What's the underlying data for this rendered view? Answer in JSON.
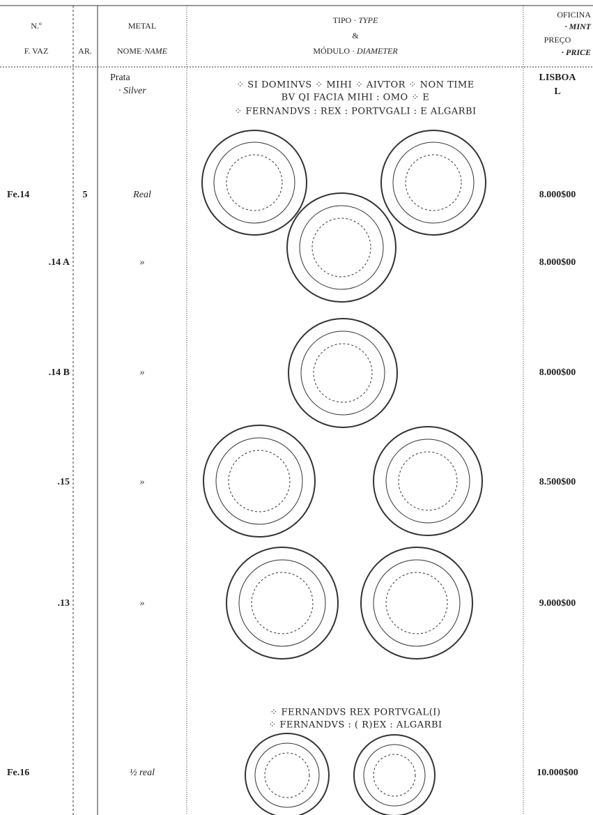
{
  "header": {
    "number": "N.º",
    "f_vaz": "F. VAZ",
    "ar": "AR.",
    "metal": "METAL",
    "nome": "NOME·",
    "name": "NAME",
    "tipo": "TIPO · ",
    "type": "TYPE",
    "and": "&",
    "modulo": "MÓDULO · ",
    "diameter": "DIAMETER",
    "oficina": "OFICINA",
    "mint": "· MINT",
    "preco": "PREÇO",
    "price": "· PRICE"
  },
  "group": {
    "metal": "Prata",
    "metal_en": "· Silver",
    "mint": "LISBOA",
    "mint_mark": "L",
    "legends": [
      "⁘ SI DOMINVS ⁘ MIHI ⁘ AIVTOR ⁘ NON TIME",
      "BV QI FACIA MIHI : OMO ⁘ E",
      "⁘ FERNANDVS : REX : PORTVGALI : E ALGARBI"
    ]
  },
  "rows": [
    {
      "number": "Fe.14",
      "ar": "5",
      "name": "Real",
      "price": "8.000$00"
    },
    {
      "number": ".14 A",
      "name": "»",
      "price": "8.000$00"
    },
    {
      "number": ".14 B",
      "name": "»",
      "price": "8.000$00"
    },
    {
      "number": ".15",
      "name": "»",
      "price": "8.500$00"
    },
    {
      "number": ".13",
      "name": "»",
      "price": "9.000$00"
    },
    {
      "number": "Fe.16",
      "name": "½ real",
      "price": "10.000$00"
    }
  ],
  "legends2": [
    "⁘ FERNANDVS REX PORTVGAL(I)",
    "⁘ FERNANDVS : ( R)EX : ALGARBI"
  ]
}
